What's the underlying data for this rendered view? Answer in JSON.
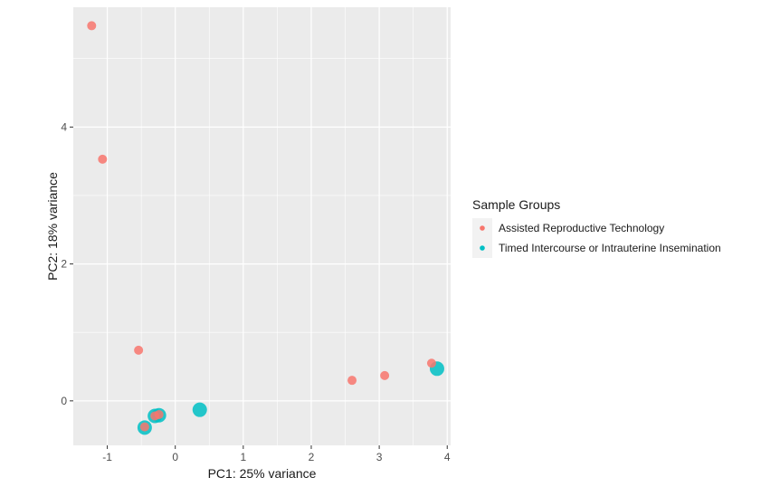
{
  "colors": {
    "panel_bg": "#ebebeb",
    "grid": "#ffffff",
    "series_art": "#f8766d",
    "series_ti": "#00bfc4"
  },
  "chart_data": {
    "type": "scatter",
    "xlabel": "PC1: 25% variance",
    "ylabel": "PC2: 18% variance",
    "xlim": [
      -1.5,
      4.05
    ],
    "ylim": [
      -0.65,
      5.75
    ],
    "x_ticks": [
      -1,
      0,
      1,
      2,
      3,
      4
    ],
    "y_ticks": [
      0,
      2,
      4
    ],
    "grid": true,
    "legend": {
      "title": "Sample Groups",
      "placement": "right"
    },
    "series": [
      {
        "name": "Assisted Reproductive Technology",
        "color": "#f8766d",
        "points": [
          {
            "x": -1.23,
            "y": 5.48
          },
          {
            "x": -1.07,
            "y": 3.53
          },
          {
            "x": -0.54,
            "y": 0.74
          },
          {
            "x": 2.6,
            "y": 0.3
          },
          {
            "x": 3.08,
            "y": 0.37
          },
          {
            "x": 3.77,
            "y": 0.55
          },
          {
            "x": -0.3,
            "y": -0.22
          },
          {
            "x": -0.24,
            "y": -0.2
          },
          {
            "x": -0.45,
            "y": -0.38
          }
        ]
      },
      {
        "name": "Timed Intercourse or Intrauterine Insemination",
        "color": "#00bfc4",
        "points": [
          {
            "x": 3.85,
            "y": 0.47
          },
          {
            "x": 0.36,
            "y": -0.13
          },
          {
            "x": -0.3,
            "y": -0.22
          },
          {
            "x": -0.24,
            "y": -0.21
          },
          {
            "x": -0.45,
            "y": -0.39
          }
        ]
      }
    ]
  }
}
